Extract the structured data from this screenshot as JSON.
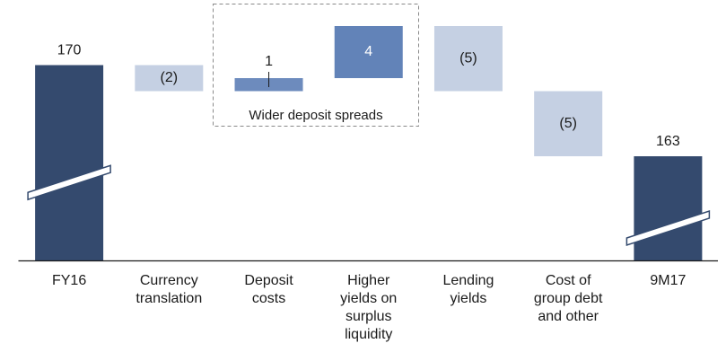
{
  "chart_data": {
    "type": "waterfall",
    "categories": [
      "FY16",
      "Currency translation",
      "Deposit costs",
      "Higher yields on surplus liquidity",
      "Lending yields",
      "Cost of group debt and other",
      "9M17"
    ],
    "values": [
      170,
      -2,
      1,
      4,
      -5,
      -5,
      163
    ],
    "value_labels": [
      "170",
      "(2)",
      "1",
      "4",
      "(5)",
      "(5)",
      "163"
    ],
    "colors": [
      "#344a6e",
      "#c5d0e3",
      "#6d8bbd",
      "#6283b8",
      "#c5d0e3",
      "#c5d0e3",
      "#344a6e"
    ],
    "ylim": [
      155,
      175
    ],
    "axis_break": true,
    "annotation": "Wider deposit spreads"
  }
}
